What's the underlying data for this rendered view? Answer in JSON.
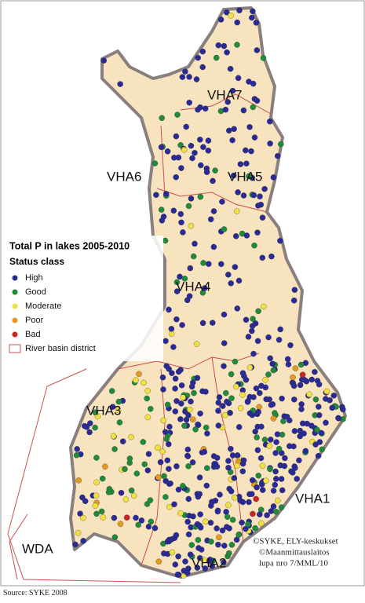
{
  "map": {
    "title": "Total P in lakes 2005-2010",
    "legend_heading": "Status class",
    "legend": [
      {
        "label": "High",
        "color": "#2a2a96"
      },
      {
        "label": "Good",
        "color": "#1f8a3b"
      },
      {
        "label": "Moderate",
        "color": "#f0e040"
      },
      {
        "label": "Poor",
        "color": "#e39a22"
      },
      {
        "label": "Bad",
        "color": "#cc2222"
      },
      {
        "label": "River basin district",
        "color": "#c85050"
      }
    ],
    "regions": [
      "VHA7",
      "VHA6",
      "VHA5",
      "VHA4",
      "VHA3",
      "VHA1",
      "VHA2",
      "WDA"
    ],
    "credits": [
      "©SYKE, ELY-keskukset",
      "©Maanmittauslaitos",
      "lupa nro 7/MML/10"
    ]
  },
  "source": "Source: SYKE 2008"
}
